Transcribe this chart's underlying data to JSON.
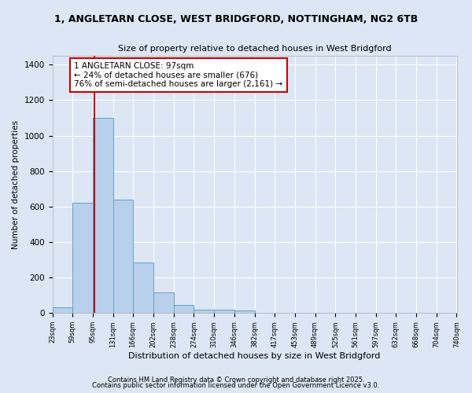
{
  "title_line1": "1, ANGLETARN CLOSE, WEST BRIDGFORD, NOTTINGHAM, NG2 6TB",
  "title_line2": "Size of property relative to detached houses in West Bridgford",
  "xlabel": "Distribution of detached houses by size in West Bridgford",
  "ylabel": "Number of detached properties",
  "bin_edges": [
    23,
    59,
    95,
    131,
    166,
    202,
    238,
    274,
    310,
    346,
    382,
    417,
    453,
    489,
    525,
    561,
    597,
    632,
    668,
    704,
    740
  ],
  "bar_heights": [
    30,
    620,
    1100,
    640,
    285,
    115,
    45,
    20,
    20,
    15,
    0,
    0,
    0,
    0,
    0,
    0,
    0,
    0,
    0,
    0
  ],
  "bar_color": "#b8d0eb",
  "bar_edge_color": "#6a9fc8",
  "subject_size": 97,
  "vline_color": "#cc0000",
  "annotation_text": "1 ANGLETARN CLOSE: 97sqm\n← 24% of detached houses are smaller (676)\n76% of semi-detached houses are larger (2,161) →",
  "annotation_box_color": "#ffffff",
  "annotation_box_edge_color": "#cc0000",
  "ylim": [
    0,
    1450
  ],
  "yticks": [
    0,
    200,
    400,
    600,
    800,
    1000,
    1200,
    1400
  ],
  "background_color": "#dce6f5",
  "grid_color": "#ffffff",
  "footer_line1": "Contains HM Land Registry data © Crown copyright and database right 2025.",
  "footer_line2": "Contains public sector information licensed under the Open Government Licence v3.0."
}
